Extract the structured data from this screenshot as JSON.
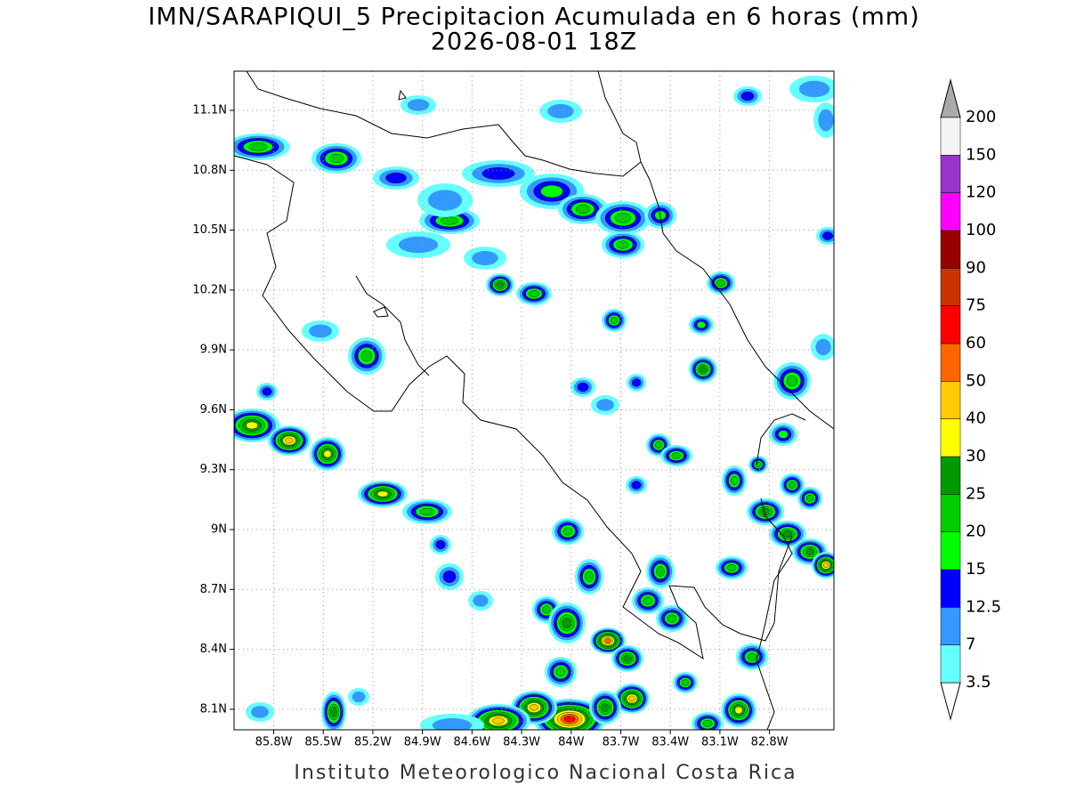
{
  "header": {
    "title": "IMN/SARAPIQUI_5 Precipitacion Acumulada en 6 horas (mm)",
    "subtitle": "2026-08-01 18Z"
  },
  "map": {
    "xlim": [
      -86.04,
      -82.41
    ],
    "ylim": [
      7.997,
      11.296
    ],
    "grid": true,
    "xticks": [
      {
        "value": -85.8,
        "label": "85.8W"
      },
      {
        "value": -85.5,
        "label": "85.5W"
      },
      {
        "value": -85.2,
        "label": "85.2W"
      },
      {
        "value": -84.9,
        "label": "84.9W"
      },
      {
        "value": -84.6,
        "label": "84.6W"
      },
      {
        "value": -84.3,
        "label": "84.3W"
      },
      {
        "value": -84,
        "label": "84W"
      },
      {
        "value": -83.7,
        "label": "83.7W"
      },
      {
        "value": -83.4,
        "label": "83.4W"
      },
      {
        "value": -83.1,
        "label": "83.1W"
      },
      {
        "value": -82.8,
        "label": "82.8W"
      }
    ],
    "yticks": [
      {
        "value": 8.1,
        "label": "8.1N"
      },
      {
        "value": 8.4,
        "label": "8.4N"
      },
      {
        "value": 8.7,
        "label": "8.7N"
      },
      {
        "value": 9,
        "label": "9N"
      },
      {
        "value": 9.3,
        "label": "9.3N"
      },
      {
        "value": 9.6,
        "label": "9.6N"
      },
      {
        "value": 9.9,
        "label": "9.9N"
      },
      {
        "value": 10.2,
        "label": "10.2N"
      },
      {
        "value": 10.5,
        "label": "10.5N"
      },
      {
        "value": 10.8,
        "label": "10.8N"
      },
      {
        "value": 11.1,
        "label": "11.1N"
      }
    ]
  },
  "colorbar": {
    "levels": [
      3.5,
      7,
      12.5,
      15,
      20,
      25,
      30,
      40,
      50,
      60,
      75,
      90,
      100,
      120,
      150,
      200
    ],
    "colors": [
      "#66ffff",
      "#3399ff",
      "#0000ff",
      "#00ff00",
      "#00cc00",
      "#009900",
      "#ffff00",
      "#ffcc00",
      "#ff6600",
      "#ff0000",
      "#cc3300",
      "#990000",
      "#ff00ff",
      "#9933cc",
      "#f4f4f4"
    ],
    "under_color": "#ffffff",
    "over_color": "#aaaaaa"
  },
  "footer": "Instituto Meteorologico Nacional Costa Rica"
}
